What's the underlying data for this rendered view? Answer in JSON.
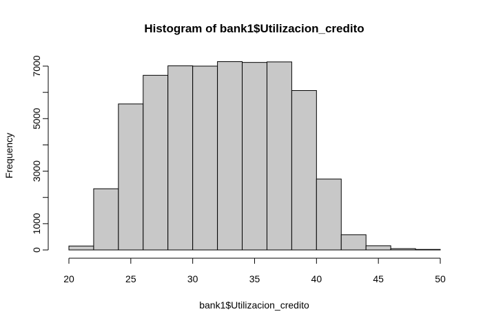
{
  "chart_data": {
    "type": "bar",
    "title": "Histogram of bank1$Utilizacion_credito",
    "xlabel": "bank1$Utilizacion_credito",
    "ylabel": "Frequency",
    "bin_edges": [
      20,
      22,
      24,
      26,
      28,
      30,
      32,
      34,
      36,
      38,
      40,
      42,
      44,
      46,
      48,
      50
    ],
    "values": [
      150,
      2330,
      5560,
      6650,
      7010,
      7000,
      7170,
      7140,
      7160,
      6070,
      2700,
      580,
      160,
      50,
      20
    ],
    "xlim": [
      20,
      50
    ],
    "ylim": [
      0,
      7000
    ],
    "x_ticks": [
      20,
      25,
      30,
      35,
      40,
      45,
      50
    ],
    "y_ticks": [
      0,
      1000,
      2000,
      3000,
      4000,
      5000,
      6000,
      7000
    ],
    "y_tick_labels": [
      "0",
      "1000",
      "",
      "3000",
      "",
      "5000",
      "",
      "7000"
    ],
    "bar_fill": "#c8c8c8",
    "grid": false
  }
}
